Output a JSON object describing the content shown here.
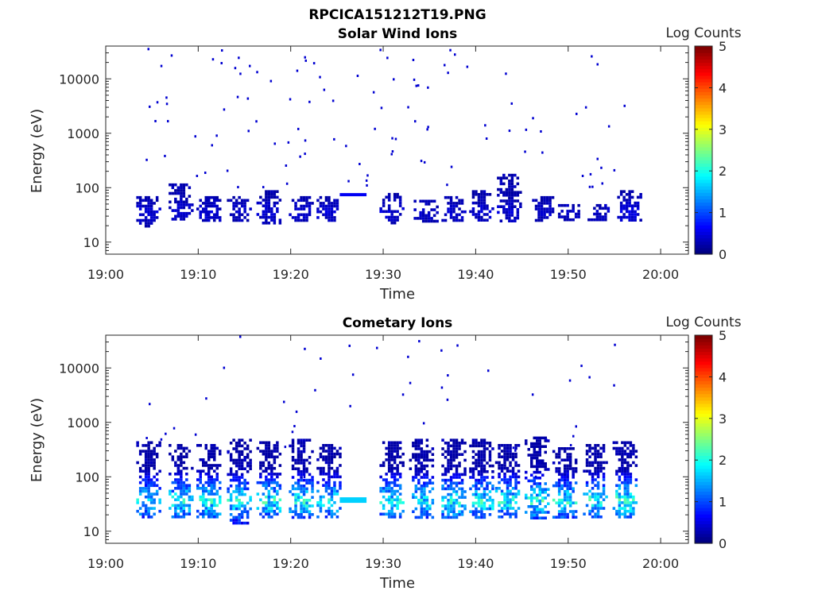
{
  "figure_title": "RPCICA151212T19.PNG",
  "colormap": "jet",
  "colors": {
    "axis": "#262626",
    "background": "#ffffff"
  },
  "chart_data": [
    {
      "type": "heatmap",
      "title": "Solar Wind Ions",
      "xlabel": "Time",
      "ylabel": "Energy (eV)",
      "y_scale": "log",
      "ylim": [
        6,
        40000
      ],
      "xlim": [
        "19:00",
        "20:03"
      ],
      "x_ticks": [
        "19:00",
        "19:10",
        "19:20",
        "19:30",
        "19:40",
        "19:50",
        "20:00"
      ],
      "y_ticks": [
        "10",
        "100",
        "1000",
        "10000"
      ],
      "colorbar": {
        "label": "Log Counts",
        "range": [
          0,
          5
        ],
        "ticks": [
          "0",
          "1",
          "2",
          "3",
          "4",
          "5"
        ]
      },
      "bursts": [
        {
          "t": "19:04.5",
          "e_low": 20,
          "e_high": 70,
          "level": 0.4
        },
        {
          "t": "19:08.0",
          "e_low": 25,
          "e_high": 120,
          "level": 0.4
        },
        {
          "t": "19:11.0",
          "e_low": 25,
          "e_high": 70,
          "level": 0.4
        },
        {
          "t": "19:14.3",
          "e_low": 25,
          "e_high": 70,
          "level": 0.35
        },
        {
          "t": "19:17.5",
          "e_low": 22,
          "e_high": 90,
          "level": 0.4
        },
        {
          "t": "19:21.0",
          "e_low": 25,
          "e_high": 70,
          "level": 0.4
        },
        {
          "t": "19:24.0",
          "e_low": 25,
          "e_high": 70,
          "level": 0.4
        },
        {
          "t": "19:30.8",
          "e_low": 22,
          "e_high": 80,
          "level": 0.4
        },
        {
          "t": "19:34.5",
          "e_low": 25,
          "e_high": 60,
          "level": 0.35
        },
        {
          "t": "19:37.5",
          "e_low": 25,
          "e_high": 70,
          "level": 0.4
        },
        {
          "t": "19:40.5",
          "e_low": 25,
          "e_high": 90,
          "level": 0.4
        },
        {
          "t": "19:43.5",
          "e_low": 25,
          "e_high": 180,
          "level": 0.4
        },
        {
          "t": "19:47.0",
          "e_low": 25,
          "e_high": 70,
          "level": 0.35
        },
        {
          "t": "19:49.8",
          "e_low": 25,
          "e_high": 50,
          "level": 0.35
        },
        {
          "t": "19:53.3",
          "e_low": 25,
          "e_high": 50,
          "level": 0.35
        },
        {
          "t": "19:56.5",
          "e_low": 25,
          "e_high": 90,
          "level": 0.45
        }
      ],
      "bands": [
        {
          "t_start": "19:25.3",
          "t_end": "19:28.2",
          "energy": 72,
          "level": 0.3
        }
      ]
    },
    {
      "type": "heatmap",
      "title": "Cometary Ions",
      "xlabel": "Time",
      "ylabel": "Energy (eV)",
      "y_scale": "log",
      "ylim": [
        6,
        40000
      ],
      "xlim": [
        "19:00",
        "20:03"
      ],
      "x_ticks": [
        "19:00",
        "19:10",
        "19:20",
        "19:30",
        "19:40",
        "19:50",
        "20:00"
      ],
      "y_ticks": [
        "10",
        "100",
        "1000",
        "10000"
      ],
      "colorbar": {
        "label": "Log Counts",
        "range": [
          0,
          5
        ],
        "ticks": [
          "0",
          "1",
          "2",
          "3",
          "4",
          "5"
        ]
      },
      "bursts": [
        {
          "t": "19:04.5",
          "e_low": 18,
          "e_high": 450,
          "level": 1.7
        },
        {
          "t": "19:08.0",
          "e_low": 18,
          "e_high": 400,
          "level": 1.8
        },
        {
          "t": "19:11.0",
          "e_low": 18,
          "e_high": 400,
          "level": 1.9
        },
        {
          "t": "19:14.3",
          "e_low": 14,
          "e_high": 500,
          "level": 1.8
        },
        {
          "t": "19:17.5",
          "e_low": 18,
          "e_high": 450,
          "level": 1.9
        },
        {
          "t": "19:21.0",
          "e_low": 18,
          "e_high": 500,
          "level": 1.9
        },
        {
          "t": "19:24.0",
          "e_low": 18,
          "e_high": 400,
          "level": 1.8
        },
        {
          "t": "19:30.8",
          "e_low": 18,
          "e_high": 450,
          "level": 1.8
        },
        {
          "t": "19:34.0",
          "e_low": 18,
          "e_high": 500,
          "level": 1.8
        },
        {
          "t": "19:37.5",
          "e_low": 18,
          "e_high": 500,
          "level": 1.9
        },
        {
          "t": "19:40.5",
          "e_low": 18,
          "e_high": 500,
          "level": 1.9
        },
        {
          "t": "19:43.3",
          "e_low": 18,
          "e_high": 400,
          "level": 1.9
        },
        {
          "t": "19:46.5",
          "e_low": 18,
          "e_high": 550,
          "level": 1.9
        },
        {
          "t": "19:49.5",
          "e_low": 18,
          "e_high": 350,
          "level": 1.9
        },
        {
          "t": "19:52.8",
          "e_low": 18,
          "e_high": 400,
          "level": 1.9
        },
        {
          "t": "19:56.0",
          "e_low": 18,
          "e_high": 450,
          "level": 2.0
        }
      ],
      "bands": [
        {
          "t_start": "19:25.3",
          "t_end": "19:28.2",
          "energy": 38,
          "level": 1.5
        }
      ]
    }
  ]
}
